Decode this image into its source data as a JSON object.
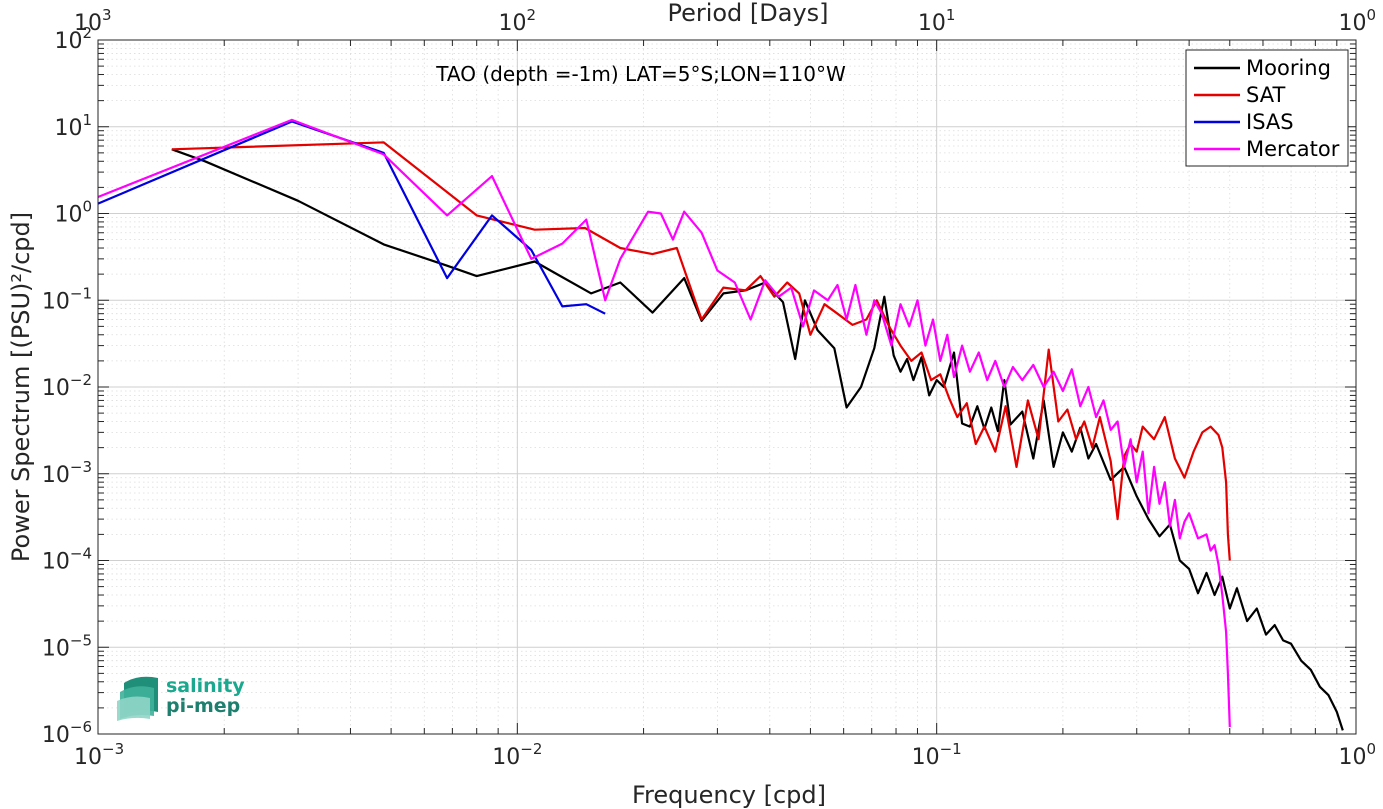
{
  "chart_data": {
    "type": "line",
    "title": "TAO (depth =-1m) LAT=5°S;LON=110°W",
    "xlabel": "Frequency [cpd]",
    "ylabel": "Power Spectrum [(PSU)²/cpd]",
    "x2label": "Period [Days]",
    "xscale": "log",
    "yscale": "log",
    "xlim": [
      0.001,
      1
    ],
    "ylim": [
      1e-06,
      100
    ],
    "grid": true,
    "legend_position": "top-right",
    "x_ticks": [
      {
        "value": 0.001,
        "base": "10",
        "exp": "-3"
      },
      {
        "value": 0.01,
        "base": "10",
        "exp": "-2"
      },
      {
        "value": 0.1,
        "base": "10",
        "exp": "-1"
      },
      {
        "value": 1,
        "base": "10",
        "exp": "0"
      }
    ],
    "x2_ticks": [
      {
        "value": 0.001,
        "base": "10",
        "exp": "3"
      },
      {
        "value": 0.01,
        "base": "10",
        "exp": "2"
      },
      {
        "value": 0.1,
        "base": "10",
        "exp": "1"
      },
      {
        "value": 1,
        "base": "10",
        "exp": "0"
      }
    ],
    "y_ticks": [
      {
        "value": 1e-06,
        "base": "10",
        "exp": "-6"
      },
      {
        "value": 1e-05,
        "base": "10",
        "exp": "-5"
      },
      {
        "value": 0.0001,
        "base": "10",
        "exp": "-4"
      },
      {
        "value": 0.001,
        "base": "10",
        "exp": "-3"
      },
      {
        "value": 0.01,
        "base": "10",
        "exp": "-2"
      },
      {
        "value": 0.1,
        "base": "10",
        "exp": "-1"
      },
      {
        "value": 1,
        "base": "10",
        "exp": "0"
      },
      {
        "value": 10,
        "base": "10",
        "exp": "1"
      },
      {
        "value": 100,
        "base": "10",
        "exp": "2"
      }
    ],
    "series": [
      {
        "name": "Mooring",
        "color": "#000000",
        "points": [
          [
            0.0015,
            5.5
          ],
          [
            0.0018,
            4
          ],
          [
            0.003,
            1.4
          ],
          [
            0.0048,
            0.44
          ],
          [
            0.0068,
            0.25
          ],
          [
            0.008,
            0.19
          ],
          [
            0.011,
            0.28
          ],
          [
            0.012,
            0.22
          ],
          [
            0.015,
            0.12
          ],
          [
            0.0176,
            0.16
          ],
          [
            0.021,
            0.072
          ],
          [
            0.025,
            0.18
          ],
          [
            0.0275,
            0.058
          ],
          [
            0.031,
            0.12
          ],
          [
            0.035,
            0.13
          ],
          [
            0.039,
            0.16
          ],
          [
            0.043,
            0.095
          ],
          [
            0.046,
            0.021
          ],
          [
            0.0485,
            0.1
          ],
          [
            0.052,
            0.045
          ],
          [
            0.057,
            0.028
          ],
          [
            0.061,
            0.0058
          ],
          [
            0.066,
            0.01
          ],
          [
            0.071,
            0.028
          ],
          [
            0.075,
            0.11
          ],
          [
            0.079,
            0.023
          ],
          [
            0.082,
            0.015
          ],
          [
            0.085,
            0.021
          ],
          [
            0.088,
            0.012
          ],
          [
            0.092,
            0.022
          ],
          [
            0.096,
            0.008
          ],
          [
            0.1,
            0.012
          ],
          [
            0.104,
            0.01
          ],
          [
            0.11,
            0.025
          ],
          [
            0.115,
            0.0038
          ],
          [
            0.12,
            0.0035
          ],
          [
            0.125,
            0.006
          ],
          [
            0.13,
            0.0033
          ],
          [
            0.135,
            0.0058
          ],
          [
            0.14,
            0.0031
          ],
          [
            0.145,
            0.012
          ],
          [
            0.15,
            0.0037
          ],
          [
            0.16,
            0.0052
          ],
          [
            0.17,
            0.0015
          ],
          [
            0.18,
            0.007
          ],
          [
            0.19,
            0.0012
          ],
          [
            0.2,
            0.003
          ],
          [
            0.21,
            0.0018
          ],
          [
            0.22,
            0.0034
          ],
          [
            0.23,
            0.0015
          ],
          [
            0.24,
            0.0022
          ],
          [
            0.26,
            0.00085
          ],
          [
            0.28,
            0.0012
          ],
          [
            0.3,
            0.00055
          ],
          [
            0.32,
            0.0003
          ],
          [
            0.34,
            0.00019
          ],
          [
            0.36,
            0.00026
          ],
          [
            0.38,
            0.0001
          ],
          [
            0.4,
            8e-05
          ],
          [
            0.42,
            4.2e-05
          ],
          [
            0.44,
            7.2e-05
          ],
          [
            0.46,
            4e-05
          ],
          [
            0.48,
            6.5e-05
          ],
          [
            0.5,
            2.8e-05
          ],
          [
            0.52,
            4.8e-05
          ],
          [
            0.55,
            2e-05
          ],
          [
            0.58,
            2.8e-05
          ],
          [
            0.61,
            1.4e-05
          ],
          [
            0.64,
            1.8e-05
          ],
          [
            0.67,
            1.2e-05
          ],
          [
            0.7,
            1.1e-05
          ],
          [
            0.74,
            7e-06
          ],
          [
            0.78,
            5.5e-06
          ],
          [
            0.82,
            3.5e-06
          ],
          [
            0.86,
            2.8e-06
          ],
          [
            0.9,
            1.8e-06
          ],
          [
            0.93,
            1.1e-06
          ]
        ]
      },
      {
        "name": "SAT",
        "color": "#e50000",
        "points": [
          [
            0.0015,
            5.5
          ],
          [
            0.0048,
            6.6
          ],
          [
            0.008,
            0.95
          ],
          [
            0.011,
            0.65
          ],
          [
            0.0145,
            0.68
          ],
          [
            0.0176,
            0.4
          ],
          [
            0.021,
            0.34
          ],
          [
            0.024,
            0.4
          ],
          [
            0.0275,
            0.06
          ],
          [
            0.031,
            0.14
          ],
          [
            0.035,
            0.13
          ],
          [
            0.038,
            0.19
          ],
          [
            0.041,
            0.11
          ],
          [
            0.044,
            0.16
          ],
          [
            0.047,
            0.12
          ],
          [
            0.05,
            0.04
          ],
          [
            0.054,
            0.09
          ],
          [
            0.058,
            0.07
          ],
          [
            0.063,
            0.052
          ],
          [
            0.068,
            0.06
          ],
          [
            0.072,
            0.1
          ],
          [
            0.077,
            0.05
          ],
          [
            0.082,
            0.03
          ],
          [
            0.087,
            0.02
          ],
          [
            0.092,
            0.025
          ],
          [
            0.097,
            0.012
          ],
          [
            0.102,
            0.014
          ],
          [
            0.107,
            0.0075
          ],
          [
            0.112,
            0.0045
          ],
          [
            0.118,
            0.0065
          ],
          [
            0.124,
            0.0022
          ],
          [
            0.13,
            0.0035
          ],
          [
            0.138,
            0.0018
          ],
          [
            0.146,
            0.006
          ],
          [
            0.155,
            0.0012
          ],
          [
            0.165,
            0.007
          ],
          [
            0.175,
            0.0025
          ],
          [
            0.185,
            0.027
          ],
          [
            0.195,
            0.004
          ],
          [
            0.205,
            0.0055
          ],
          [
            0.215,
            0.0025
          ],
          [
            0.225,
            0.004
          ],
          [
            0.235,
            0.002
          ],
          [
            0.245,
            0.0045
          ],
          [
            0.26,
            0.0014
          ],
          [
            0.27,
            0.0003
          ],
          [
            0.28,
            0.0016
          ],
          [
            0.29,
            0.0022
          ],
          [
            0.3,
            0.0018
          ],
          [
            0.31,
            0.0035
          ],
          [
            0.33,
            0.0025
          ],
          [
            0.35,
            0.0045
          ],
          [
            0.37,
            0.0015
          ],
          [
            0.39,
            0.0009
          ],
          [
            0.41,
            0.0018
          ],
          [
            0.43,
            0.003
          ],
          [
            0.45,
            0.0035
          ],
          [
            0.47,
            0.0028
          ],
          [
            0.48,
            0.002
          ],
          [
            0.49,
            0.0008
          ],
          [
            0.495,
            0.0002
          ],
          [
            0.5,
            0.0001
          ]
        ]
      },
      {
        "name": "ISAS",
        "color": "#0000e0",
        "points": [
          [
            0.001,
            1.3
          ],
          [
            0.0029,
            11.5
          ],
          [
            0.0048,
            5
          ],
          [
            0.0068,
            0.18
          ],
          [
            0.0087,
            0.95
          ],
          [
            0.0108,
            0.38
          ],
          [
            0.0128,
            0.085
          ],
          [
            0.0146,
            0.09
          ],
          [
            0.0162,
            0.07
          ]
        ]
      },
      {
        "name": "Mercator",
        "color": "#ff00ff",
        "points": [
          [
            0.001,
            1.55
          ],
          [
            0.0029,
            12
          ],
          [
            0.0048,
            4.8
          ],
          [
            0.0068,
            0.95
          ],
          [
            0.0087,
            2.7
          ],
          [
            0.0108,
            0.3
          ],
          [
            0.0128,
            0.45
          ],
          [
            0.0146,
            0.85
          ],
          [
            0.0162,
            0.1
          ],
          [
            0.0176,
            0.3
          ],
          [
            0.0205,
            1.05
          ],
          [
            0.022,
            1
          ],
          [
            0.0235,
            0.5
          ],
          [
            0.025,
            1.05
          ],
          [
            0.0275,
            0.6
          ],
          [
            0.03,
            0.22
          ],
          [
            0.033,
            0.16
          ],
          [
            0.036,
            0.06
          ],
          [
            0.039,
            0.17
          ],
          [
            0.042,
            0.11
          ],
          [
            0.045,
            0.14
          ],
          [
            0.048,
            0.05
          ],
          [
            0.051,
            0.13
          ],
          [
            0.055,
            0.1
          ],
          [
            0.058,
            0.15
          ],
          [
            0.061,
            0.06
          ],
          [
            0.064,
            0.15
          ],
          [
            0.068,
            0.04
          ],
          [
            0.071,
            0.1
          ],
          [
            0.074,
            0.07
          ],
          [
            0.078,
            0.03
          ],
          [
            0.082,
            0.09
          ],
          [
            0.086,
            0.05
          ],
          [
            0.09,
            0.1
          ],
          [
            0.094,
            0.03
          ],
          [
            0.098,
            0.06
          ],
          [
            0.102,
            0.02
          ],
          [
            0.106,
            0.04
          ],
          [
            0.11,
            0.013
          ],
          [
            0.115,
            0.03
          ],
          [
            0.12,
            0.015
          ],
          [
            0.126,
            0.025
          ],
          [
            0.132,
            0.012
          ],
          [
            0.138,
            0.02
          ],
          [
            0.145,
            0.01
          ],
          [
            0.152,
            0.017
          ],
          [
            0.16,
            0.012
          ],
          [
            0.17,
            0.018
          ],
          [
            0.18,
            0.01
          ],
          [
            0.19,
            0.015
          ],
          [
            0.2,
            0.009
          ],
          [
            0.21,
            0.016
          ],
          [
            0.22,
            0.006
          ],
          [
            0.23,
            0.01
          ],
          [
            0.24,
            0.0045
          ],
          [
            0.25,
            0.007
          ],
          [
            0.26,
            0.0032
          ],
          [
            0.27,
            0.004
          ],
          [
            0.28,
            0.0012
          ],
          [
            0.29,
            0.0025
          ],
          [
            0.3,
            0.0008
          ],
          [
            0.31,
            0.0018
          ],
          [
            0.32,
            0.00035
          ],
          [
            0.33,
            0.0012
          ],
          [
            0.34,
            0.00045
          ],
          [
            0.35,
            0.0008
          ],
          [
            0.36,
            0.00025
          ],
          [
            0.37,
            0.0005
          ],
          [
            0.38,
            0.00018
          ],
          [
            0.39,
            0.00028
          ],
          [
            0.4,
            0.00035
          ],
          [
            0.42,
            0.00018
          ],
          [
            0.44,
            0.0002
          ],
          [
            0.45,
            0.00013
          ],
          [
            0.46,
            0.00015
          ],
          [
            0.47,
            9e-05
          ],
          [
            0.48,
            4e-05
          ],
          [
            0.49,
            1.5e-05
          ],
          [
            0.495,
            5e-06
          ],
          [
            0.5,
            1.2e-06
          ]
        ]
      }
    ]
  },
  "logo": {
    "line1": "salinity",
    "line2": "pi-mep"
  }
}
